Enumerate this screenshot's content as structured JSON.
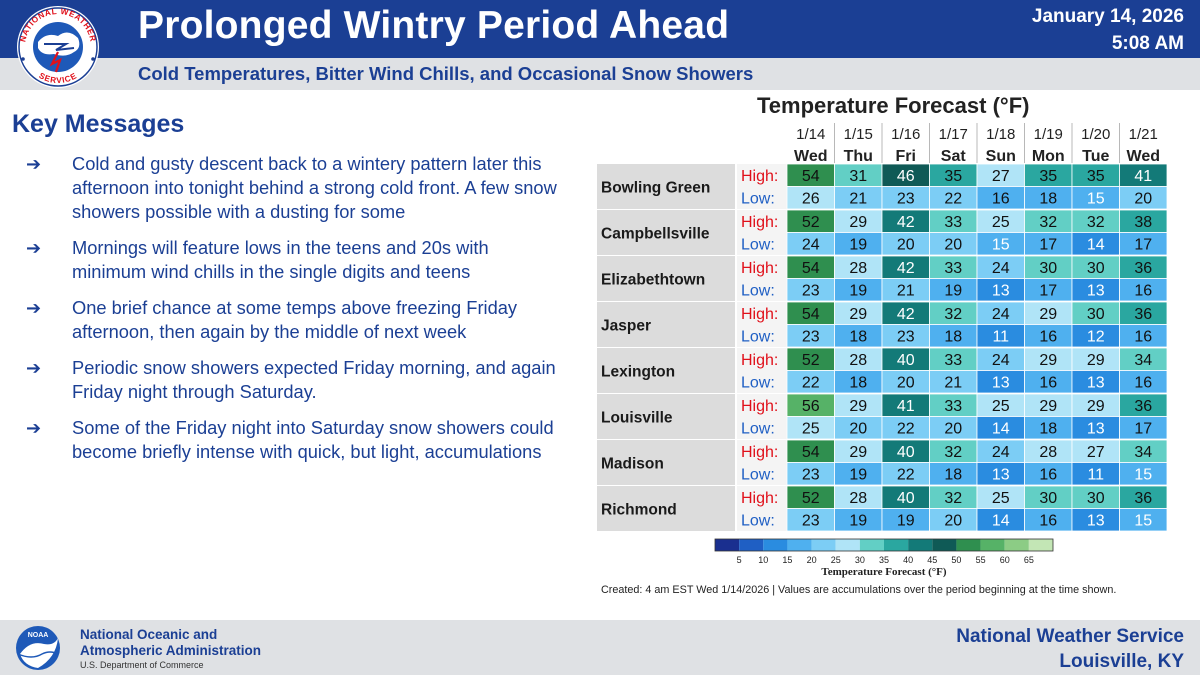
{
  "header": {
    "title": "Prolonged Wintry Period Ahead",
    "subtitle": "Cold Temperatures, Bitter Wind Chills, and Occasional Snow Showers",
    "date": "January 14, 2026",
    "time": "5:08 AM",
    "logo_text": "NATIONAL WEATHER SERVICE",
    "band_color": "#1b3f94"
  },
  "key_messages": {
    "title": "Key Messages",
    "arrow": "➔",
    "items": [
      "Cold and gusty descent back to a wintery pattern later this afternoon into tonight behind a strong cold front. A few snow showers possible with a dusting for some",
      "Mornings will feature lows in the teens and 20s with minimum wind chills in the single digits and teens",
      "One brief chance at some temps above freezing Friday afternoon, then again by the middle of next week",
      "Periodic snow showers expected Friday morning, and again Friday night through Saturday.",
      "Some of the Friday night into Saturday snow showers could become briefly intense with quick, but light, accumulations"
    ]
  },
  "forecast": {
    "title": "Temperature Forecast (°F)",
    "high_label": "High:",
    "low_label": "Low:",
    "dates": [
      "1/14",
      "1/15",
      "1/16",
      "1/17",
      "1/18",
      "1/19",
      "1/20",
      "1/21"
    ],
    "days": [
      "Wed",
      "Thu",
      "Fri",
      "Sat",
      "Sun",
      "Mon",
      "Tue",
      "Wed"
    ],
    "cities": [
      {
        "name": "Bowling Green",
        "high": [
          54,
          31,
          46,
          35,
          27,
          35,
          35,
          41
        ],
        "low": [
          26,
          21,
          23,
          22,
          16,
          18,
          15,
          20
        ]
      },
      {
        "name": "Campbellsville",
        "high": [
          52,
          29,
          42,
          33,
          25,
          32,
          32,
          38
        ],
        "low": [
          24,
          19,
          20,
          20,
          15,
          17,
          14,
          17
        ]
      },
      {
        "name": "Elizabethtown",
        "high": [
          54,
          28,
          42,
          33,
          24,
          30,
          30,
          36
        ],
        "low": [
          23,
          19,
          21,
          19,
          13,
          17,
          13,
          16
        ]
      },
      {
        "name": "Jasper",
        "high": [
          54,
          29,
          42,
          32,
          24,
          29,
          30,
          36
        ],
        "low": [
          23,
          18,
          23,
          18,
          11,
          16,
          12,
          16
        ]
      },
      {
        "name": "Lexington",
        "high": [
          52,
          28,
          40,
          33,
          24,
          29,
          29,
          34
        ],
        "low": [
          22,
          18,
          20,
          21,
          13,
          16,
          13,
          16
        ]
      },
      {
        "name": "Louisville",
        "high": [
          56,
          29,
          41,
          33,
          25,
          29,
          29,
          36
        ],
        "low": [
          25,
          20,
          22,
          20,
          14,
          18,
          13,
          17
        ]
      },
      {
        "name": "Madison",
        "high": [
          54,
          29,
          40,
          32,
          24,
          28,
          27,
          34
        ],
        "low": [
          23,
          19,
          22,
          18,
          13,
          16,
          11,
          15
        ]
      },
      {
        "name": "Richmond",
        "high": [
          52,
          28,
          40,
          32,
          25,
          30,
          30,
          36
        ],
        "low": [
          23,
          19,
          19,
          20,
          14,
          16,
          13,
          15
        ]
      }
    ],
    "scale_ticks": [
      5,
      10,
      15,
      20,
      25,
      30,
      35,
      40,
      45,
      50,
      55,
      60,
      65
    ],
    "scale_label": "Temperature Forecast (°F)",
    "scale_colors": [
      "#1a2f8f",
      "#1f5fc4",
      "#2a8ce0",
      "#4fb0ef",
      "#7ccdf5",
      "#b0e4f7",
      "#62cfc5",
      "#2aa7a0",
      "#137a78",
      "#0f5a56",
      "#2f8f4f",
      "#56b267",
      "#8ccc85",
      "#c3e6b5"
    ],
    "created_text": "Created: 4 am EST Wed 1/14/2026  |  Values are accumulations over the period beginning at the time shown.",
    "label_colors": {
      "high": "#e0101a",
      "low": "#1f5fc4"
    }
  },
  "footer": {
    "agency_line1": "National Oceanic and",
    "agency_line2": "Atmospheric Administration",
    "agency_line3": "U.S. Department of Commerce",
    "office_line1": "National Weather Service",
    "office_line2": "Louisville, KY",
    "noaa_logo_text": "NOAA"
  }
}
